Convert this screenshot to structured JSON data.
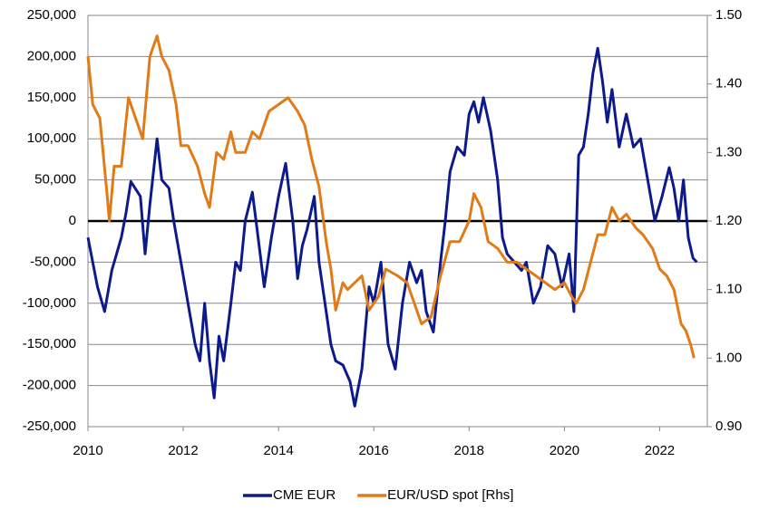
{
  "chart_data": {
    "type": "line",
    "xlim": [
      2010,
      2023
    ],
    "xticks": [
      2010,
      2012,
      2014,
      2016,
      2018,
      2020,
      2022
    ],
    "ylim": [
      -250000,
      250000
    ],
    "yticks": [
      {
        "value": -250000,
        "label": "-250,000"
      },
      {
        "value": -200000,
        "label": "-200,000"
      },
      {
        "value": -150000,
        "label": "-150,000"
      },
      {
        "value": -100000,
        "label": "-100,000"
      },
      {
        "value": -50000,
        "label": "-50,000"
      },
      0,
      {
        "value": 50000,
        "label": "50,000"
      },
      {
        "value": 100000,
        "label": "100,000"
      },
      {
        "value": 150000,
        "label": "150,000"
      },
      {
        "value": 200000,
        "label": "200,000"
      },
      {
        "value": 250000,
        "label": "250,000"
      }
    ],
    "y2lim": [
      0.9,
      1.5
    ],
    "y2ticks": [
      {
        "value": 0.9,
        "label": "0.90"
      },
      {
        "value": 1.0,
        "label": "1.00"
      },
      {
        "value": 1.1,
        "label": "1.10"
      },
      {
        "value": 1.2,
        "label": "1.20"
      },
      {
        "value": 1.3,
        "label": "1.30"
      },
      {
        "value": 1.4,
        "label": "1.40"
      },
      {
        "value": 1.5,
        "label": "1.50"
      }
    ],
    "grid": true,
    "legend": "bottom",
    "series": [
      {
        "name": "CME EUR",
        "color": "#0d1a8c",
        "axis": "y",
        "x": [
          2010.0,
          2010.2,
          2010.35,
          2010.5,
          2010.7,
          2010.8,
          2010.9,
          2011.1,
          2011.2,
          2011.3,
          2011.45,
          2011.55,
          2011.7,
          2011.8,
          2011.95,
          2012.1,
          2012.25,
          2012.35,
          2012.45,
          2012.55,
          2012.65,
          2012.75,
          2012.85,
          2013.0,
          2013.1,
          2013.2,
          2013.3,
          2013.45,
          2013.55,
          2013.7,
          2013.85,
          2014.0,
          2014.15,
          2014.3,
          2014.4,
          2014.5,
          2014.6,
          2014.75,
          2014.85,
          2015.0,
          2015.1,
          2015.2,
          2015.35,
          2015.5,
          2015.6,
          2015.75,
          2015.9,
          2016.0,
          2016.15,
          2016.3,
          2016.45,
          2016.6,
          2016.75,
          2016.9,
          2017.0,
          2017.1,
          2017.25,
          2017.4,
          2017.5,
          2017.6,
          2017.75,
          2017.9,
          2018.0,
          2018.1,
          2018.2,
          2018.3,
          2018.45,
          2018.6,
          2018.7,
          2018.8,
          2018.95,
          2019.1,
          2019.2,
          2019.35,
          2019.5,
          2019.65,
          2019.8,
          2019.95,
          2020.1,
          2020.2,
          2020.3,
          2020.4,
          2020.5,
          2020.6,
          2020.7,
          2020.8,
          2020.9,
          2021.0,
          2021.15,
          2021.3,
          2021.45,
          2021.6,
          2021.75,
          2021.9,
          2022.05,
          2022.2,
          2022.3,
          2022.4,
          2022.5,
          2022.6,
          2022.7,
          2022.78
        ],
        "values": [
          -20000,
          -80000,
          -110000,
          -60000,
          -20000,
          10000,
          48000,
          30000,
          -40000,
          20000,
          100000,
          50000,
          40000,
          0,
          -50000,
          -100000,
          -150000,
          -170000,
          -100000,
          -170000,
          -215000,
          -140000,
          -170000,
          -100000,
          -50000,
          -60000,
          0,
          35000,
          -10000,
          -80000,
          -20000,
          30000,
          70000,
          0,
          -70000,
          -30000,
          -10000,
          30000,
          -50000,
          -110000,
          -150000,
          -170000,
          -175000,
          -195000,
          -225000,
          -180000,
          -80000,
          -100000,
          -50000,
          -150000,
          -180000,
          -100000,
          -50000,
          -75000,
          -60000,
          -110000,
          -135000,
          -50000,
          0,
          60000,
          90000,
          80000,
          130000,
          145000,
          120000,
          150000,
          110000,
          50000,
          -20000,
          -40000,
          -50000,
          -60000,
          -50000,
          -100000,
          -80000,
          -30000,
          -40000,
          -80000,
          -40000,
          -110000,
          80000,
          90000,
          130000,
          180000,
          210000,
          170000,
          120000,
          160000,
          90000,
          130000,
          90000,
          100000,
          50000,
          0,
          30000,
          65000,
          40000,
          0,
          50000,
          -20000,
          -45000,
          -50000
        ]
      },
      {
        "name": "EUR/USD spot [Rhs]",
        "color": "#e07b17",
        "axis": "y2",
        "x": [
          2010.0,
          2010.1,
          2010.25,
          2010.4,
          2010.45,
          2010.55,
          2010.7,
          2010.85,
          2011.0,
          2011.15,
          2011.3,
          2011.45,
          2011.55,
          2011.7,
          2011.85,
          2011.95,
          2012.1,
          2012.3,
          2012.45,
          2012.55,
          2012.7,
          2012.85,
          2013.0,
          2013.1,
          2013.3,
          2013.45,
          2013.6,
          2013.8,
          2014.0,
          2014.2,
          2014.4,
          2014.55,
          2014.7,
          2014.85,
          2015.0,
          2015.1,
          2015.2,
          2015.35,
          2015.45,
          2015.6,
          2015.75,
          2015.9,
          2016.1,
          2016.25,
          2016.5,
          2016.7,
          2016.85,
          2017.0,
          2017.2,
          2017.4,
          2017.6,
          2017.8,
          2018.0,
          2018.1,
          2018.25,
          2018.4,
          2018.6,
          2018.8,
          2019.0,
          2019.2,
          2019.4,
          2019.6,
          2019.8,
          2020.0,
          2020.15,
          2020.25,
          2020.4,
          2020.55,
          2020.7,
          2020.85,
          2021.0,
          2021.15,
          2021.3,
          2021.5,
          2021.65,
          2021.85,
          2022.0,
          2022.15,
          2022.3,
          2022.45,
          2022.55,
          2022.65,
          2022.72
        ],
        "values": [
          1.44,
          1.37,
          1.35,
          1.24,
          1.2,
          1.28,
          1.28,
          1.38,
          1.35,
          1.32,
          1.44,
          1.47,
          1.44,
          1.42,
          1.37,
          1.31,
          1.31,
          1.28,
          1.24,
          1.22,
          1.3,
          1.29,
          1.33,
          1.3,
          1.3,
          1.33,
          1.32,
          1.36,
          1.37,
          1.38,
          1.36,
          1.34,
          1.29,
          1.25,
          1.17,
          1.13,
          1.07,
          1.11,
          1.1,
          1.11,
          1.12,
          1.07,
          1.09,
          1.13,
          1.12,
          1.11,
          1.08,
          1.05,
          1.06,
          1.12,
          1.17,
          1.17,
          1.2,
          1.24,
          1.22,
          1.17,
          1.16,
          1.14,
          1.14,
          1.13,
          1.12,
          1.11,
          1.1,
          1.11,
          1.09,
          1.08,
          1.1,
          1.14,
          1.18,
          1.18,
          1.22,
          1.2,
          1.21,
          1.19,
          1.18,
          1.16,
          1.13,
          1.12,
          1.1,
          1.05,
          1.04,
          1.02,
          1.0
        ]
      }
    ]
  }
}
